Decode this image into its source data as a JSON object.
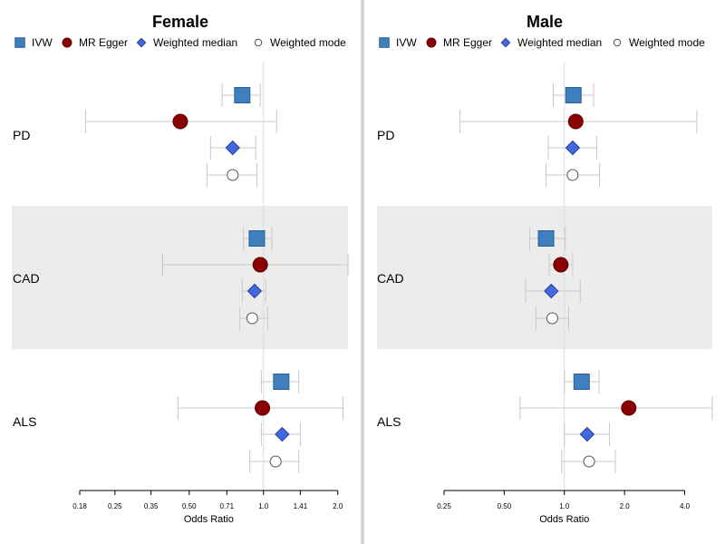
{
  "colors": {
    "ivw": "#3f7fbf",
    "ivw_stroke": "#2a5f8f",
    "egger": "#8b0000",
    "egger_stroke": "#5a0000",
    "wmedian": "#4169e1",
    "wmedian_stroke": "#2a3f99",
    "wmode_fill": "#ffffff",
    "wmode_stroke": "#555555",
    "band": "#ececec",
    "ci": "#c8c8c8",
    "refline": "#dcdcdc",
    "divider": "#d6d6d6"
  },
  "chart_data": [
    {
      "type": "forest",
      "title": "Female",
      "xlabel": "Odds Ratio",
      "scale": "log",
      "xlim": [
        0.18,
        2.2
      ],
      "reference_line": 1.0,
      "ticks": [
        0.18,
        0.25,
        0.35,
        0.5,
        0.71,
        1.0,
        1.41,
        2.0
      ],
      "tick_labels": [
        "0.18",
        "0.25",
        "0.35",
        "0.50",
        "0.71",
        "1.0",
        "1.41",
        "2.0"
      ],
      "legend": [
        "IVW",
        "MR Egger",
        "Weighted median",
        "Weighted mode"
      ],
      "groups": [
        {
          "label": "PD",
          "shaded": false,
          "estimates": [
            {
              "method": "IVW",
              "or": 0.82,
              "lo": 0.68,
              "hi": 0.97
            },
            {
              "method": "MR Egger",
              "or": 0.46,
              "lo": 0.19,
              "hi": 1.13
            },
            {
              "method": "Weighted median",
              "or": 0.75,
              "lo": 0.61,
              "hi": 0.93
            },
            {
              "method": "Weighted mode",
              "or": 0.75,
              "lo": 0.59,
              "hi": 0.94
            }
          ]
        },
        {
          "label": "CAD",
          "shaded": true,
          "estimates": [
            {
              "method": "IVW",
              "or": 0.94,
              "lo": 0.83,
              "hi": 1.08
            },
            {
              "method": "MR Egger",
              "or": 0.97,
              "lo": 0.39,
              "hi": 2.2
            },
            {
              "method": "Weighted median",
              "or": 0.92,
              "lo": 0.82,
              "hi": 1.02
            },
            {
              "method": "Weighted mode",
              "or": 0.9,
              "lo": 0.8,
              "hi": 1.04
            }
          ]
        },
        {
          "label": "ALS",
          "shaded": false,
          "estimates": [
            {
              "method": "IVW",
              "or": 1.18,
              "lo": 0.98,
              "hi": 1.39
            },
            {
              "method": "MR Egger",
              "or": 0.99,
              "lo": 0.45,
              "hi": 2.1
            },
            {
              "method": "Weighted median",
              "or": 1.19,
              "lo": 0.98,
              "hi": 1.41
            },
            {
              "method": "Weighted mode",
              "or": 1.12,
              "lo": 0.88,
              "hi": 1.39
            }
          ]
        }
      ]
    },
    {
      "type": "forest",
      "title": "Male",
      "xlabel": "Odds Ratio",
      "scale": "log",
      "xlim": [
        0.25,
        5.5
      ],
      "reference_line": 1.0,
      "ticks": [
        0.25,
        0.5,
        1.0,
        2.0,
        4.0
      ],
      "tick_labels": [
        "0.25",
        "0.50",
        "1.0",
        "2.0",
        "4.0"
      ],
      "legend": [
        "IVW",
        "MR Egger",
        "Weighted median",
        "Weighted mode"
      ],
      "groups": [
        {
          "label": "PD",
          "shaded": false,
          "estimates": [
            {
              "method": "IVW",
              "or": 1.11,
              "lo": 0.88,
              "hi": 1.4
            },
            {
              "method": "MR Egger",
              "or": 1.14,
              "lo": 0.3,
              "hi": 4.6
            },
            {
              "method": "Weighted median",
              "or": 1.1,
              "lo": 0.83,
              "hi": 1.45
            },
            {
              "method": "Weighted mode",
              "or": 1.1,
              "lo": 0.81,
              "hi": 1.5
            }
          ]
        },
        {
          "label": "CAD",
          "shaded": true,
          "estimates": [
            {
              "method": "IVW",
              "or": 0.81,
              "lo": 0.67,
              "hi": 1.01
            },
            {
              "method": "MR Egger",
              "or": 0.96,
              "lo": 0.84,
              "hi": 1.1
            },
            {
              "method": "Weighted median",
              "or": 0.86,
              "lo": 0.64,
              "hi": 1.2
            },
            {
              "method": "Weighted mode",
              "or": 0.87,
              "lo": 0.72,
              "hi": 1.05
            }
          ]
        },
        {
          "label": "ALS",
          "shaded": false,
          "estimates": [
            {
              "method": "IVW",
              "or": 1.22,
              "lo": 1.0,
              "hi": 1.49
            },
            {
              "method": "MR Egger",
              "or": 2.1,
              "lo": 0.6,
              "hi": 5.5
            },
            {
              "method": "Weighted median",
              "or": 1.3,
              "lo": 1.0,
              "hi": 1.68
            },
            {
              "method": "Weighted mode",
              "or": 1.33,
              "lo": 0.97,
              "hi": 1.8
            }
          ]
        }
      ]
    }
  ]
}
